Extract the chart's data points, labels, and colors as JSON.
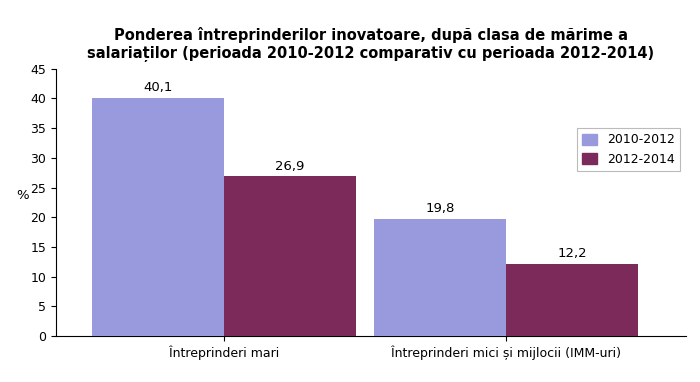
{
  "title_line1": "Ponderea întreprinderilor inovatoare, după clasa de mărime a",
  "title_line2": "salariaților (perioada 2010-2012 comparativ cu perioada 2012-2014)",
  "categories": [
    "Întreprinderi mari",
    "Întreprinderi mici și mijlocii (IMM-uri)"
  ],
  "series": [
    {
      "label": "2010-2012",
      "values": [
        40.1,
        19.8
      ],
      "color": "#9999DD"
    },
    {
      "label": "2012-2014",
      "values": [
        26.9,
        12.2
      ],
      "color": "#7B2A5A"
    }
  ],
  "ylabel": "%",
  "ylim": [
    0,
    45
  ],
  "yticks": [
    0,
    5,
    10,
    15,
    20,
    25,
    30,
    35,
    40,
    45
  ],
  "bar_width": 0.22,
  "value_labels": [
    "40,1",
    "26,9",
    "19,8",
    "12,2"
  ],
  "background_color": "#ffffff",
  "title_fontsize": 10.5,
  "label_fontsize": 9.5,
  "tick_fontsize": 9,
  "annot_fontsize": 9.5
}
